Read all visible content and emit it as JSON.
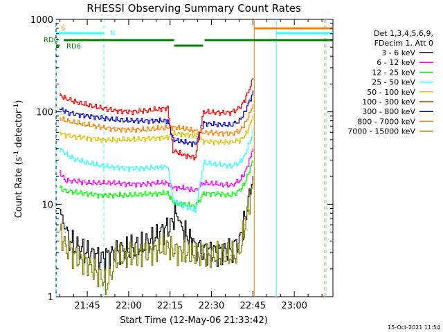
{
  "chart_data": {
    "type": "line",
    "title": "RHESSI Observing Summary Count Rates",
    "xlabel": "Start Time (12-May-06 21:33:42)",
    "ylabel_main": "Count Rate (s",
    "ylabel_sup1": "-1",
    "ylabel_mid": " detector",
    "ylabel_sup2": "-1",
    "ylabel_end": ")",
    "y_scale": "log",
    "ylim": [
      1,
      1000
    ],
    "xlim": [
      "21:33:42",
      "23:14:00"
    ],
    "x_ticks": [
      "21:45",
      "22:00",
      "22:15",
      "22:30",
      "22:45",
      "23:00"
    ],
    "y_ticks": [
      "1",
      "10",
      "100",
      "1000"
    ],
    "grid": false,
    "legend_position": "right",
    "legend_header": [
      "Det 1,3,4,5,6,9,",
      "FDecim 1, Att 0"
    ],
    "footer_date": "15-Oct-2021 11:54",
    "flags": [
      {
        "label": "S",
        "color": "#ff8000"
      },
      {
        "label": "N",
        "color": "#33ffff"
      },
      {
        "label": "RD0",
        "color": "#008000"
      },
      {
        "label": "RD6",
        "color": "#008000"
      }
    ],
    "vertical_markers": [
      {
        "time": "21:33:42",
        "color": "#33ffff",
        "style": "dashed"
      },
      {
        "time": "21:51:00",
        "color": "#33ffff",
        "style": "dashed"
      },
      {
        "time": "22:45:30",
        "color": "#ff8000",
        "style": "solid"
      },
      {
        "time": "22:53:30",
        "color": "#33ffff",
        "style": "solid"
      },
      {
        "time": "23:11:00",
        "color": "#ff8000",
        "style": "dashed"
      },
      {
        "time": "23:11:30",
        "color": "#33ffff",
        "style": "dashed"
      }
    ],
    "series": [
      {
        "name": "3 - 6 keV",
        "color": "#000000",
        "points": [
          [
            "21:35",
            9
          ],
          [
            "21:37",
            5
          ],
          [
            "21:40",
            3.5
          ],
          [
            "21:45",
            3
          ],
          [
            "21:50",
            2.6
          ],
          [
            "21:55",
            3
          ],
          [
            "22:00",
            3.3
          ],
          [
            "22:05",
            3.5
          ],
          [
            "22:10",
            4.5
          ],
          [
            "22:15",
            6
          ],
          [
            "22:17",
            8
          ],
          [
            "22:20",
            5
          ],
          [
            "22:24",
            3.5
          ],
          [
            "22:27",
            3.2
          ],
          [
            "22:32",
            3
          ],
          [
            "22:37",
            3.2
          ],
          [
            "22:40",
            4
          ],
          [
            "22:42",
            7
          ],
          [
            "22:44",
            14
          ],
          [
            "22:45",
            20
          ]
        ]
      },
      {
        "name": "6 - 12 keV",
        "color": "#ff00ff",
        "points": [
          [
            "21:35",
            22
          ],
          [
            "21:37",
            18
          ],
          [
            "21:40",
            18
          ],
          [
            "21:45",
            17
          ],
          [
            "21:50",
            17
          ],
          [
            "21:55",
            17
          ],
          [
            "22:00",
            16.5
          ],
          [
            "22:05",
            16.5
          ],
          [
            "22:10",
            17
          ],
          [
            "22:14",
            17
          ],
          [
            "22:16",
            15
          ],
          [
            "22:20",
            15
          ],
          [
            "22:24",
            14
          ],
          [
            "22:27",
            17
          ],
          [
            "22:32",
            16.5
          ],
          [
            "22:37",
            16
          ],
          [
            "22:40",
            18
          ],
          [
            "22:42",
            22
          ],
          [
            "22:44",
            32
          ],
          [
            "22:45",
            40
          ]
        ]
      },
      {
        "name": "12 - 25 keV",
        "color": "#00ff00",
        "points": [
          [
            "21:35",
            15
          ],
          [
            "21:37",
            14
          ],
          [
            "21:40",
            13.5
          ],
          [
            "21:45",
            13
          ],
          [
            "21:50",
            12.5
          ],
          [
            "21:55",
            12.5
          ],
          [
            "22:00",
            12.5
          ],
          [
            "22:05",
            12.8
          ],
          [
            "22:10",
            13
          ],
          [
            "22:14",
            13.2
          ],
          [
            "22:16",
            10.5
          ],
          [
            "22:20",
            10
          ],
          [
            "22:24",
            9.5
          ],
          [
            "22:27",
            13
          ],
          [
            "22:32",
            13
          ],
          [
            "22:37",
            12.5
          ],
          [
            "22:40",
            14
          ],
          [
            "22:42",
            17
          ],
          [
            "22:44",
            25
          ],
          [
            "22:45",
            30
          ]
        ]
      },
      {
        "name": "25 - 50 keV",
        "color": "#33ffff",
        "points": [
          [
            "21:35",
            40
          ],
          [
            "21:37",
            35
          ],
          [
            "21:40",
            31
          ],
          [
            "21:45",
            28
          ],
          [
            "21:50",
            26
          ],
          [
            "21:55",
            25
          ],
          [
            "22:00",
            24.5
          ],
          [
            "22:05",
            24.5
          ],
          [
            "22:10",
            25
          ],
          [
            "22:14",
            25.5
          ],
          [
            "22:16",
            11
          ],
          [
            "22:20",
            9.5
          ],
          [
            "22:24",
            8.5
          ],
          [
            "22:27",
            28
          ],
          [
            "22:32",
            27
          ],
          [
            "22:37",
            26
          ],
          [
            "22:40",
            28
          ],
          [
            "22:42",
            34
          ],
          [
            "22:44",
            50
          ],
          [
            "22:45",
            65
          ]
        ]
      },
      {
        "name": "50 - 100 keV",
        "color": "#e0c000",
        "points": [
          [
            "21:35",
            60
          ],
          [
            "21:37",
            56
          ],
          [
            "21:40",
            54
          ],
          [
            "21:45",
            52
          ],
          [
            "21:50",
            50
          ],
          [
            "21:55",
            49.5
          ],
          [
            "22:00",
            50
          ],
          [
            "22:05",
            51
          ],
          [
            "22:10",
            52
          ],
          [
            "22:14",
            53
          ],
          [
            "22:16",
            58
          ],
          [
            "22:20",
            57
          ],
          [
            "22:24",
            55
          ],
          [
            "22:27",
            48
          ],
          [
            "22:32",
            47
          ],
          [
            "22:37",
            47
          ],
          [
            "22:40",
            49
          ],
          [
            "22:42",
            55
          ],
          [
            "22:44",
            75
          ],
          [
            "22:45",
            90
          ]
        ]
      },
      {
        "name": "100 - 300 keV",
        "color": "#ff0000",
        "points": [
          [
            "21:35",
            150
          ],
          [
            "21:37",
            140
          ],
          [
            "21:40",
            130
          ],
          [
            "21:45",
            118
          ],
          [
            "21:50",
            110
          ],
          [
            "21:55",
            103
          ],
          [
            "22:00",
            100
          ],
          [
            "22:05",
            102
          ],
          [
            "22:10",
            106
          ],
          [
            "22:14",
            110
          ],
          [
            "22:16",
            38
          ],
          [
            "22:20",
            34
          ],
          [
            "22:24",
            32
          ],
          [
            "22:27",
            100
          ],
          [
            "22:32",
            98
          ],
          [
            "22:37",
            98
          ],
          [
            "22:40",
            110
          ],
          [
            "22:42",
            135
          ],
          [
            "22:44",
            190
          ],
          [
            "22:45",
            230
          ]
        ]
      },
      {
        "name": "300 - 800 keV",
        "color": "#0000cc",
        "points": [
          [
            "21:35",
            108
          ],
          [
            "21:37",
            100
          ],
          [
            "21:40",
            95
          ],
          [
            "21:45",
            90
          ],
          [
            "21:50",
            86
          ],
          [
            "21:55",
            82
          ],
          [
            "22:00",
            80
          ],
          [
            "22:05",
            80
          ],
          [
            "22:10",
            80
          ],
          [
            "22:14",
            80
          ],
          [
            "22:16",
            50
          ],
          [
            "22:20",
            47
          ],
          [
            "22:24",
            45
          ],
          [
            "22:27",
            75
          ],
          [
            "22:32",
            73
          ],
          [
            "22:37",
            72
          ],
          [
            "22:40",
            80
          ],
          [
            "22:42",
            100
          ],
          [
            "22:44",
            140
          ],
          [
            "22:45",
            170
          ]
        ]
      },
      {
        "name": "800 - 7000 keV",
        "color": "#ff8000",
        "points": [
          [
            "21:35",
            85
          ],
          [
            "21:37",
            80
          ],
          [
            "21:40",
            77
          ],
          [
            "21:45",
            72
          ],
          [
            "21:50",
            68
          ],
          [
            "21:55",
            65
          ],
          [
            "22:00",
            64
          ],
          [
            "22:05",
            64
          ],
          [
            "22:10",
            66
          ],
          [
            "22:14",
            68
          ],
          [
            "22:16",
            68
          ],
          [
            "22:20",
            66
          ],
          [
            "22:24",
            62
          ],
          [
            "22:27",
            60
          ],
          [
            "22:32",
            59
          ],
          [
            "22:37",
            58
          ],
          [
            "22:40",
            62
          ],
          [
            "22:42",
            74
          ],
          [
            "22:44",
            100
          ],
          [
            "22:45",
            120
          ]
        ]
      },
      {
        "name": "7000 - 15000 keV",
        "color": "#808000",
        "points": [
          [
            "21:35",
            5
          ],
          [
            "21:37",
            3.5
          ],
          [
            "21:40",
            2.8
          ],
          [
            "21:45",
            2.3
          ],
          [
            "21:50",
            1.6
          ],
          [
            "21:52",
            1.3
          ],
          [
            "21:55",
            2.5
          ],
          [
            "22:00",
            2.8
          ],
          [
            "22:05",
            3
          ],
          [
            "22:10",
            3.2
          ],
          [
            "22:14",
            3.5
          ],
          [
            "22:16",
            3.2
          ],
          [
            "22:20",
            3
          ],
          [
            "22:24",
            2.8
          ],
          [
            "22:27",
            2.8
          ],
          [
            "22:32",
            2.8
          ],
          [
            "22:37",
            2.8
          ],
          [
            "22:40",
            3
          ],
          [
            "22:42",
            6
          ],
          [
            "22:44",
            12
          ],
          [
            "22:45",
            18
          ]
        ]
      }
    ]
  }
}
